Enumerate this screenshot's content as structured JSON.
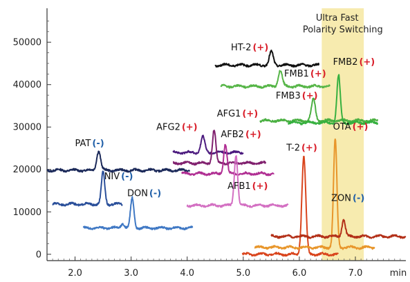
{
  "chart_data": {
    "type": "line",
    "title": "",
    "xlabel": "",
    "ylabel": "",
    "x_unit_label": "min",
    "xlim": [
      1.5,
      7.9
    ],
    "ylim": [
      -1500,
      58000
    ],
    "x_ticks": [
      2.0,
      3.0,
      4.0,
      5.0,
      6.0,
      7.0
    ],
    "x_tick_labels": [
      "2.0",
      "3.0",
      "4.0",
      "5.0",
      "6.0",
      "7.0"
    ],
    "y_ticks": [
      0,
      10000,
      20000,
      30000,
      40000,
      50000
    ],
    "y_tick_labels": [
      "0",
      "10000",
      "20000",
      "30000",
      "40000",
      "50000"
    ],
    "grid": false,
    "highlight_band": {
      "x_range": [
        6.4,
        7.15
      ],
      "label_lines": [
        "Ultra Fast",
        "Polarity Switching"
      ],
      "color": "#f6e7a1"
    },
    "series": [
      {
        "name": "PAT",
        "polarity": "(-)",
        "color": "#1c2a5a",
        "x_range": [
          1.5,
          4.05
        ],
        "baseline": 19800,
        "peaks": [
          {
            "rt": 2.42,
            "height": 4600,
            "width": 0.035
          }
        ]
      },
      {
        "name": "NIV",
        "polarity": "(-)",
        "color": "#2a4f9a",
        "x_range": [
          1.6,
          2.85
        ],
        "baseline": 11800,
        "peaks": [
          {
            "rt": 2.5,
            "height": 7500,
            "width": 0.03
          }
        ]
      },
      {
        "name": "DON",
        "polarity": "(-)",
        "color": "#3f78c4",
        "x_range": [
          2.15,
          4.1
        ],
        "baseline": 6200,
        "peaks": [
          {
            "rt": 2.85,
            "height": 1100,
            "width": 0.03
          },
          {
            "rt": 3.02,
            "height": 7000,
            "width": 0.03
          }
        ]
      },
      {
        "name": "AFG2",
        "polarity": "(+)",
        "color": "#4b1a7e",
        "x_range": [
          3.75,
          5.0
        ],
        "baseline": 24000,
        "peaks": [
          {
            "rt": 4.28,
            "height": 3700,
            "width": 0.035
          }
        ]
      },
      {
        "name": "AFG1",
        "polarity": "(+)",
        "color": "#80206e",
        "x_range": [
          3.75,
          5.4
        ],
        "baseline": 21500,
        "peaks": [
          {
            "rt": 4.48,
            "height": 7800,
            "width": 0.03
          }
        ]
      },
      {
        "name": "AFB2",
        "polarity": "(+)",
        "color": "#b02f93",
        "x_range": [
          3.9,
          5.55
        ],
        "baseline": 19000,
        "peaks": [
          {
            "rt": 4.68,
            "height": 7000,
            "width": 0.03
          }
        ]
      },
      {
        "name": "AFB1",
        "polarity": "(+)",
        "color": "#d36fc2",
        "x_range": [
          4.0,
          5.8
        ],
        "baseline": 11500,
        "peaks": [
          {
            "rt": 4.87,
            "height": 12000,
            "width": 0.03
          }
        ]
      },
      {
        "name": "HT-2",
        "polarity": "(+)",
        "color": "#111111",
        "x_range": [
          4.5,
          6.35
        ],
        "baseline": 44600,
        "peaks": [
          {
            "rt": 5.5,
            "height": 3100,
            "width": 0.035
          }
        ]
      },
      {
        "name": "FMB1",
        "polarity": "(+)",
        "color": "#56b547",
        "x_range": [
          4.6,
          6.55
        ],
        "baseline": 39600,
        "peaks": [
          {
            "rt": 5.66,
            "height": 3700,
            "width": 0.035
          }
        ]
      },
      {
        "name": "FMB3",
        "polarity": "(+)",
        "color": "#4bb042",
        "x_range": [
          5.3,
          7.4
        ],
        "baseline": 31500,
        "peaks": [
          {
            "rt": 6.25,
            "height": 5000,
            "width": 0.035
          }
        ]
      },
      {
        "name": "FMB2",
        "polarity": "(+)",
        "color": "#36b03f",
        "x_range": [
          5.8,
          7.4
        ],
        "baseline": 31000,
        "peaks": [
          {
            "rt": 6.7,
            "height": 11200,
            "width": 0.03
          }
        ]
      },
      {
        "name": "T-2",
        "polarity": "(+)",
        "color": "#d9441c",
        "x_range": [
          4.98,
          6.7
        ],
        "baseline": 0,
        "peaks": [
          {
            "rt": 6.08,
            "height": 23000,
            "width": 0.035
          }
        ]
      },
      {
        "name": "OTA",
        "polarity": "(+)",
        "color": "#e8962b",
        "x_range": [
          5.2,
          7.35
        ],
        "baseline": 1600,
        "peaks": [
          {
            "rt": 6.64,
            "height": 25500,
            "width": 0.03
          }
        ]
      },
      {
        "name": "ZON",
        "polarity": "(-)",
        "color": "#b33018",
        "x_range": [
          5.5,
          7.9
        ],
        "baseline": 4200,
        "peaks": [
          {
            "rt": 6.79,
            "height": 3900,
            "width": 0.03
          }
        ]
      }
    ],
    "peak_labels": [
      {
        "series": "PAT",
        "text": "PAT",
        "polarity": "(-)",
        "x": 2.0,
        "y": 25500
      },
      {
        "series": "NIV",
        "text": "NIV",
        "polarity": "(-)",
        "x": 2.52,
        "y": 17700
      },
      {
        "series": "DON",
        "text": "DON",
        "polarity": "(-)",
        "x": 2.93,
        "y": 13700
      },
      {
        "series": "AFG2",
        "text": "AFG2",
        "polarity": "(+)",
        "x": 3.45,
        "y": 29300
      },
      {
        "series": "AFG1",
        "text": "AFG1",
        "polarity": "(+)",
        "x": 4.53,
        "y": 32500
      },
      {
        "series": "AFB2",
        "text": "AFB2",
        "polarity": "(+)",
        "x": 4.6,
        "y": 27600
      },
      {
        "series": "AFB1",
        "text": "AFB1",
        "polarity": "(+)",
        "x": 4.72,
        "y": 15400
      },
      {
        "series": "HT-2",
        "text": "HT-2",
        "polarity": "(+)",
        "x": 4.78,
        "y": 48100
      },
      {
        "series": "FMB1",
        "text": "FMB1",
        "polarity": "(+)",
        "x": 5.73,
        "y": 41900
      },
      {
        "series": "FMB3",
        "text": "FMB3",
        "polarity": "(+)",
        "x": 5.58,
        "y": 36700
      },
      {
        "series": "FMB2",
        "text": "FMB2",
        "polarity": "(+)",
        "x": 6.6,
        "y": 44700
      },
      {
        "series": "T-2",
        "text": "T-2",
        "polarity": "(+)",
        "x": 5.77,
        "y": 24400
      },
      {
        "series": "OTA",
        "text": "OTA",
        "polarity": "(+)",
        "x": 6.6,
        "y": 29400
      },
      {
        "series": "ZON",
        "text": "ZON",
        "polarity": "(-)",
        "x": 6.57,
        "y": 12600
      }
    ]
  }
}
